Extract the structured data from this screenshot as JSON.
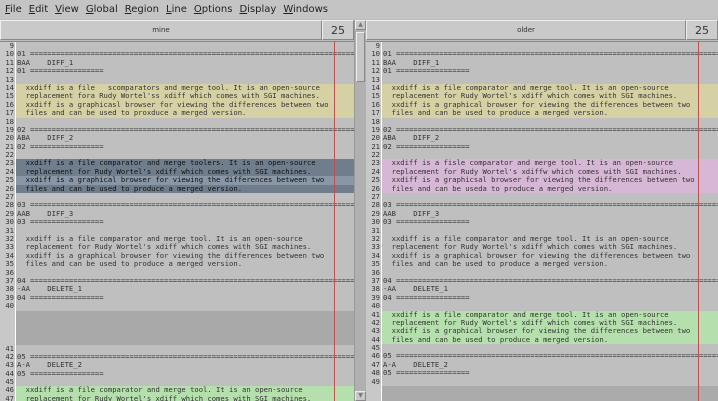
{
  "menu": [
    "File",
    "Edit",
    "View",
    "Global",
    "Region",
    "Line",
    "Options",
    "Display",
    "Windows"
  ],
  "panes": [
    {
      "title": "mine",
      "line_count": "25",
      "lines": [
        {
          "n": "9",
          "t": "",
          "c": ""
        },
        {
          "n": "10",
          "t": "01 ===========================================================================",
          "c": ""
        },
        {
          "n": "11",
          "t": "BAA    DIFF_1",
          "c": ""
        },
        {
          "n": "12",
          "t": "01 =================",
          "c": ""
        },
        {
          "n": "13",
          "t": "",
          "c": ""
        },
        {
          "n": "14",
          "t": "  xxdiff is a file   scomparators and merge tool. It is an open-source",
          "c": "yellow"
        },
        {
          "n": "15",
          "t": "  replacement fora Rudy Wortel'ss xdiff which comes with SGI machines.",
          "c": "yellow"
        },
        {
          "n": "16",
          "t": "  xxdiff is a graphicasl browser for viewing the differences between two",
          "c": "yellow"
        },
        {
          "n": "17",
          "t": "  files and can be used to proxduce a merged version.",
          "c": "yellow"
        },
        {
          "n": "18",
          "t": "",
          "c": ""
        },
        {
          "n": "19",
          "t": "02 ===========================================================================",
          "c": ""
        },
        {
          "n": "20",
          "t": "ABA    DIFF_2",
          "c": ""
        },
        {
          "n": "21",
          "t": "02 =================",
          "c": ""
        },
        {
          "n": "22",
          "t": "",
          "c": ""
        },
        {
          "n": "23",
          "t": "  xxdiff is a file comparator and merge toolers. It is an open-source",
          "c": "blue"
        },
        {
          "n": "24",
          "t": "  replacement for Rudy Wortel's xdiff which comes with SGI machines.",
          "c": "blue"
        },
        {
          "n": "25",
          "t": "  xxdiff is a graphical browser for viewing the differences between two",
          "c": "cur"
        },
        {
          "n": "26",
          "t": "  files and can be used to produce a merged version.",
          "c": "blue"
        },
        {
          "n": "27",
          "t": "",
          "c": ""
        },
        {
          "n": "28",
          "t": "03 ===========================================================================",
          "c": ""
        },
        {
          "n": "29",
          "t": "AAB    DIFF_3",
          "c": ""
        },
        {
          "n": "30",
          "t": "03 =================",
          "c": ""
        },
        {
          "n": "31",
          "t": "",
          "c": ""
        },
        {
          "n": "32",
          "t": "  xxdiff is a file comparator and merge tool. It is an open-source",
          "c": ""
        },
        {
          "n": "33",
          "t": "  replacement for Rudy Wortel's xdiff which comes with SGI machines.",
          "c": ""
        },
        {
          "n": "34",
          "t": "  xxdiff is a graphical browser for viewing the differences between two",
          "c": ""
        },
        {
          "n": "35",
          "t": "  files and can be used to produce a merged version.",
          "c": ""
        },
        {
          "n": "36",
          "t": "",
          "c": ""
        },
        {
          "n": "37",
          "t": "04 ===========================================================================",
          "c": ""
        },
        {
          "n": "38",
          "t": "-AA    DELETE_1",
          "c": ""
        },
        {
          "n": "39",
          "t": "04 =================",
          "c": ""
        },
        {
          "n": "40",
          "t": "",
          "c": ""
        },
        {
          "gap": true
        },
        {
          "n": "41",
          "t": "",
          "c": ""
        },
        {
          "n": "42",
          "t": "05 ===========================================================================",
          "c": ""
        },
        {
          "n": "43",
          "t": "A-A    DELETE_2",
          "c": ""
        },
        {
          "n": "44",
          "t": "05 =================",
          "c": ""
        },
        {
          "n": "45",
          "t": "",
          "c": ""
        },
        {
          "n": "46",
          "t": "  xxdiff is a file comparator and merge tool. It is an open-source",
          "c": "green"
        },
        {
          "n": "47",
          "t": "  replacement for Rudy Wortel's xdiff which comes with SGI machines.",
          "c": "green"
        }
      ]
    },
    {
      "title": "older",
      "line_count": "25",
      "lines": [
        {
          "n": "9",
          "t": "",
          "c": ""
        },
        {
          "n": "10",
          "t": "01 ===========================================================================",
          "c": ""
        },
        {
          "n": "11",
          "t": "BAA    DIFF_1",
          "c": ""
        },
        {
          "n": "12",
          "t": "01 =================",
          "c": ""
        },
        {
          "n": "13",
          "t": "",
          "c": ""
        },
        {
          "n": "14",
          "t": "  xxdiff is a file comparator and merge tool. It is an open-source",
          "c": "yellow"
        },
        {
          "n": "15",
          "t": "  replacement for Rudy Wortel's xdiff which comes with SGI machines.",
          "c": "yellow"
        },
        {
          "n": "16",
          "t": "  xxdiff is a graphical browser for viewing the differences between two",
          "c": "yellow"
        },
        {
          "n": "17",
          "t": "  files and can be used to produce a merged version.",
          "c": "yellow"
        },
        {
          "n": "18",
          "t": "",
          "c": ""
        },
        {
          "n": "19",
          "t": "02 ===========================================================================",
          "c": ""
        },
        {
          "n": "20",
          "t": "ABA    DIFF_2",
          "c": ""
        },
        {
          "n": "21",
          "t": "02 =================",
          "c": ""
        },
        {
          "n": "22",
          "t": "",
          "c": ""
        },
        {
          "n": "23",
          "t": "  xxdiff is a fisle comparator and merge tool. It is an open-source",
          "c": "pink"
        },
        {
          "n": "24",
          "t": "  replacement for Rudy Wortel's xdiffw which comes with SGI machines.",
          "c": "pink"
        },
        {
          "n": "25",
          "t": "  xxdiff is a graphicsal browser for viewing the differences between two",
          "c": "pink"
        },
        {
          "n": "26",
          "t": "  files and can be useda to produce a merged version.",
          "c": "pink"
        },
        {
          "n": "27",
          "t": "",
          "c": ""
        },
        {
          "n": "28",
          "t": "03 ===========================================================================",
          "c": ""
        },
        {
          "n": "29",
          "t": "AAB    DIFF_3",
          "c": ""
        },
        {
          "n": "30",
          "t": "03 =================",
          "c": ""
        },
        {
          "n": "31",
          "t": "",
          "c": ""
        },
        {
          "n": "32",
          "t": "  xxdiff is a file comparator and merge tool. It is an open-source",
          "c": ""
        },
        {
          "n": "33",
          "t": "  replacement for Rudy Wortel's xdiff which comes with SGI machines.",
          "c": ""
        },
        {
          "n": "34",
          "t": "  xxdiff is a graphical browser for viewing the differences between two",
          "c": ""
        },
        {
          "n": "35",
          "t": "  files and can be used to produce a merged version.",
          "c": ""
        },
        {
          "n": "36",
          "t": "",
          "c": ""
        },
        {
          "n": "37",
          "t": "04 ===========================================================================",
          "c": ""
        },
        {
          "n": "38",
          "t": "-AA    DELETE_1",
          "c": ""
        },
        {
          "n": "39",
          "t": "04 =================",
          "c": ""
        },
        {
          "n": "40",
          "t": "",
          "c": ""
        },
        {
          "n": "41",
          "t": "  xxdiff is a file comparator and merge tool. It is an open-source",
          "c": "green"
        },
        {
          "n": "42",
          "t": "  replacement for Rudy Wortel's xdiff which comes with SGI machines.",
          "c": "green"
        },
        {
          "n": "43",
          "t": "  xxdiff is a graphical browser for viewing the differences between two",
          "c": "green"
        },
        {
          "n": "44",
          "t": "  files and can be used to produce a merged version.",
          "c": "green"
        },
        {
          "n": "45",
          "t": "",
          "c": ""
        },
        {
          "n": "46",
          "t": "05 ===========================================================================",
          "c": ""
        },
        {
          "n": "47",
          "t": "A-A    DELETE_2",
          "c": ""
        },
        {
          "n": "48",
          "t": "05 =================",
          "c": ""
        },
        {
          "n": "49",
          "t": "",
          "c": ""
        },
        {
          "fill": true
        }
      ]
    }
  ],
  "colors": {
    "changed": "#d6d1a5",
    "selected": "#6f7d8c",
    "differs": "#d6b8d6",
    "inserted": "#b5e0ad",
    "gap": "#a9a9a9",
    "margin_line": "#c05050"
  }
}
